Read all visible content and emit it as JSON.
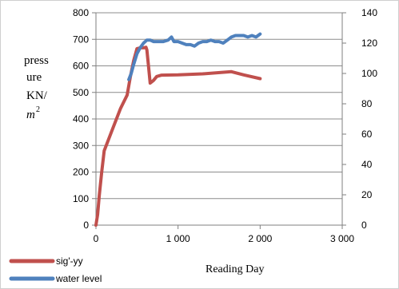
{
  "chart_data": {
    "type": "line",
    "xlabel": "Reading Day",
    "ylabel_lines": [
      "press",
      "ure",
      "KN/",
      "m",
      "2"
    ],
    "x_ticks": [
      "0",
      "1 000",
      "2 000",
      "3 000"
    ],
    "x_tick_values": [
      0,
      1000,
      2000,
      3000
    ],
    "xlim": [
      0,
      3000
    ],
    "y_left_ticks": [
      "0",
      "100",
      "200",
      "300",
      "400",
      "500",
      "600",
      "700",
      "800"
    ],
    "y_left_tick_values": [
      0,
      100,
      200,
      300,
      400,
      500,
      600,
      700,
      800
    ],
    "ylim_left": [
      0,
      800
    ],
    "y_right_ticks": [
      "0",
      "20",
      "40",
      "60",
      "80",
      "100",
      "120",
      "140"
    ],
    "y_right_tick_values": [
      0,
      20,
      40,
      60,
      80,
      100,
      120,
      140
    ],
    "ylim_right": [
      0,
      140
    ],
    "grid": true,
    "legend_position": "bottom-left",
    "series": [
      {
        "name": "sig'-yy",
        "color": "#c0504d",
        "axis": "left",
        "points": [
          [
            0,
            0
          ],
          [
            20,
            40
          ],
          [
            40,
            110
          ],
          [
            70,
            200
          ],
          [
            100,
            280
          ],
          [
            200,
            360
          ],
          [
            300,
            440
          ],
          [
            380,
            490
          ],
          [
            420,
            560
          ],
          [
            460,
            620
          ],
          [
            500,
            665
          ],
          [
            540,
            668
          ],
          [
            580,
            668
          ],
          [
            610,
            670
          ],
          [
            620,
            660
          ],
          [
            640,
            600
          ],
          [
            660,
            535
          ],
          [
            700,
            545
          ],
          [
            740,
            560
          ],
          [
            800,
            565
          ],
          [
            1000,
            566
          ],
          [
            1300,
            570
          ],
          [
            1650,
            578
          ],
          [
            1800,
            566
          ],
          [
            2000,
            552
          ]
        ]
      },
      {
        "name": "water level",
        "color": "#4f81bd",
        "axis": "right",
        "points": [
          [
            400,
            96
          ],
          [
            430,
            100
          ],
          [
            460,
            106
          ],
          [
            500,
            113
          ],
          [
            540,
            117
          ],
          [
            580,
            120
          ],
          [
            620,
            122
          ],
          [
            660,
            122
          ],
          [
            700,
            121
          ],
          [
            760,
            121
          ],
          [
            820,
            121
          ],
          [
            880,
            122
          ],
          [
            920,
            124
          ],
          [
            950,
            121
          ],
          [
            1000,
            121
          ],
          [
            1050,
            120
          ],
          [
            1100,
            119
          ],
          [
            1150,
            119
          ],
          [
            1200,
            118
          ],
          [
            1250,
            120
          ],
          [
            1300,
            121
          ],
          [
            1350,
            121
          ],
          [
            1400,
            122
          ],
          [
            1450,
            121
          ],
          [
            1500,
            121
          ],
          [
            1550,
            120
          ],
          [
            1600,
            122
          ],
          [
            1650,
            124
          ],
          [
            1700,
            125
          ],
          [
            1750,
            125
          ],
          [
            1800,
            125
          ],
          [
            1850,
            124
          ],
          [
            1900,
            125
          ],
          [
            1950,
            124
          ],
          [
            2000,
            126
          ]
        ]
      }
    ]
  }
}
